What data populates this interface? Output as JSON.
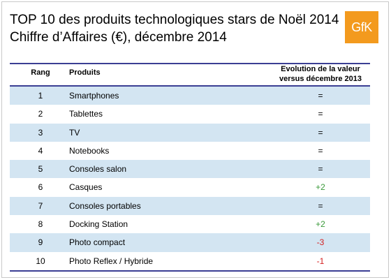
{
  "title_line1": "TOP 10 des produits technologiques stars de Noël 2014",
  "title_line2": "Chiffre d’Affaires (€), décembre 2014",
  "logo_text": "GfK",
  "colors": {
    "accent_line": "#3b3f94",
    "row_shade": "#d3e5f2",
    "logo_bg": "#f39a1e",
    "positive": "#3a9a3a",
    "negative": "#d42020"
  },
  "headers": {
    "rang": "Rang",
    "produits": "Produits",
    "evolution_line1": "Evolution de la valeur",
    "evolution_line2": "versus décembre 2013"
  },
  "rows": [
    {
      "rang": "1",
      "produit": "Smartphones",
      "evolution": "=",
      "trend": "neutral"
    },
    {
      "rang": "2",
      "produit": "Tablettes",
      "evolution": "=",
      "trend": "neutral"
    },
    {
      "rang": "3",
      "produit": "TV",
      "evolution": "=",
      "trend": "neutral"
    },
    {
      "rang": "4",
      "produit": "Notebooks",
      "evolution": "=",
      "trend": "neutral"
    },
    {
      "rang": "5",
      "produit": "Consoles salon",
      "evolution": "=",
      "trend": "neutral"
    },
    {
      "rang": "6",
      "produit": "Casques",
      "evolution": "+2",
      "trend": "positive"
    },
    {
      "rang": "7",
      "produit": "Consoles portables",
      "evolution": "=",
      "trend": "neutral"
    },
    {
      "rang": "8",
      "produit": "Docking Station",
      "evolution": "+2",
      "trend": "positive"
    },
    {
      "rang": "9",
      "produit": "Photo compact",
      "evolution": "-3",
      "trend": "negative"
    },
    {
      "rang": "10",
      "produit": "Photo Reflex / Hybride",
      "evolution": "-1",
      "trend": "negative"
    }
  ]
}
